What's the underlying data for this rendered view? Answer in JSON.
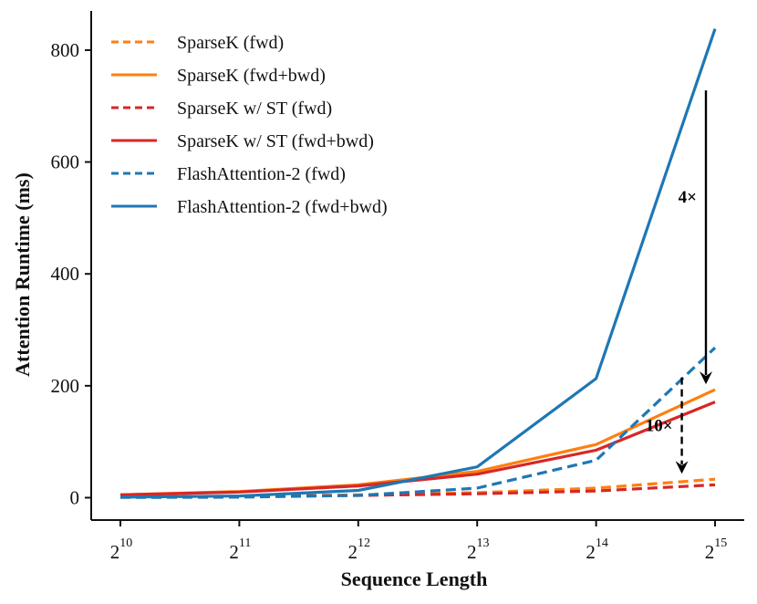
{
  "chart_data": {
    "type": "line",
    "xlabel": "Sequence Length",
    "ylabel": "Attention Runtime (ms)",
    "x_scale": "log2",
    "x": [
      1024,
      2048,
      4096,
      8192,
      16384,
      32768
    ],
    "x_tick_labels": [
      {
        "base": "2",
        "exp": "10"
      },
      {
        "base": "2",
        "exp": "11"
      },
      {
        "base": "2",
        "exp": "12"
      },
      {
        "base": "2",
        "exp": "13"
      },
      {
        "base": "2",
        "exp": "14"
      },
      {
        "base": "2",
        "exp": "15"
      }
    ],
    "y_ticks": [
      0,
      200,
      400,
      600,
      800
    ],
    "ylim": [
      -40,
      870
    ],
    "grid": false,
    "legend_position": "top-left",
    "series": [
      {
        "name": "SparseK (fwd)",
        "color": "#ff7f0e",
        "dash": true,
        "values": [
          1.5,
          2.5,
          5,
          9,
          17,
          33
        ]
      },
      {
        "name": "SparseK (fwd+bwd)",
        "color": "#ff7f0e",
        "dash": false,
        "values": [
          5,
          11,
          23,
          47,
          95,
          193
        ]
      },
      {
        "name": "SparseK w/ ST (fwd)",
        "color": "#d62728",
        "dash": true,
        "values": [
          1.5,
          2,
          4,
          7,
          12,
          23
        ]
      },
      {
        "name": "SparseK w/ ST (fwd+bwd)",
        "color": "#d62728",
        "dash": false,
        "values": [
          5,
          10,
          21,
          42,
          85,
          171
        ]
      },
      {
        "name": "FlashAttention-2 (fwd)",
        "color": "#1f77b4",
        "dash": true,
        "values": [
          0.5,
          1,
          4,
          17,
          67,
          268
        ]
      },
      {
        "name": "FlashAttention-2 (fwd+bwd)",
        "color": "#1f77b4",
        "dash": false,
        "values": [
          1,
          3,
          13,
          55,
          213,
          838
        ]
      }
    ],
    "annotations": [
      {
        "label": "4×",
        "from": {
          "x": 32768,
          "y": 728
        },
        "to": {
          "x": 32768,
          "y": 193
        },
        "dashed": false
      },
      {
        "label": "10×",
        "from": {
          "x": 27000,
          "y": 215
        },
        "to": {
          "x": 27000,
          "y": 33
        },
        "dashed": true
      }
    ]
  }
}
